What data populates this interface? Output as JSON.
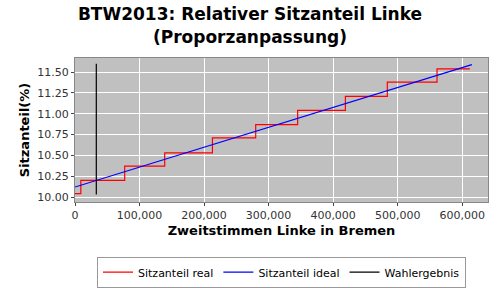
{
  "chart_data": {
    "type": "line",
    "title": "BTW2013: Relativer Sitzanteil Linke\n(Proporzanpassung)",
    "x_label": "Zweitstimmen Linke in Bremen",
    "y_label": "Sitzanteil(%)",
    "series": [
      {
        "name": "Sitzanteil real",
        "color": "#ff0000",
        "line_style": "step",
        "x": [
          0,
          9000,
          77000,
          139000,
          213000,
          280000,
          345000,
          419000,
          484000,
          561000,
          612000
        ],
        "values": [
          10.04,
          10.2,
          10.37,
          10.53,
          10.71,
          10.87,
          11.04,
          11.21,
          11.38,
          11.54,
          11.54
        ]
      },
      {
        "name": "Sitzanteil ideal",
        "color": "#0000ff",
        "line_style": "solid",
        "x": [
          0,
          615000
        ],
        "values": [
          10.12,
          11.59
        ]
      },
      {
        "name": "Wahlergebnis",
        "color": "#000000",
        "line_style": "solid",
        "x": [
          33000,
          33000
        ],
        "values": [
          10.03,
          11.6
        ]
      }
    ],
    "xlim": [
      0,
      640000
    ],
    "xticks": [
      0,
      {
        "value": 100000,
        "label": "100,000"
      },
      {
        "value": 200000,
        "label": "200,000"
      },
      {
        "value": 300000,
        "label": "300,000"
      },
      {
        "value": 400000,
        "label": "400,000"
      },
      {
        "value": 500000,
        "label": "500,000"
      },
      {
        "value": 600000,
        "label": "600,000"
      }
    ],
    "ylim": [
      9.94,
      11.67
    ],
    "yticks": [
      {
        "value": 10,
        "label": "10.00"
      },
      {
        "value": 10.25,
        "label": "10.25"
      },
      {
        "value": 10.5,
        "label": "10.50"
      },
      {
        "value": 10.75,
        "label": "10.75"
      },
      {
        "value": 11,
        "label": "11.00"
      },
      {
        "value": 11.25,
        "label": "11.25"
      },
      {
        "value": 11.5,
        "label": "11.50"
      }
    ],
    "grid": true,
    "legend": "bottom"
  }
}
